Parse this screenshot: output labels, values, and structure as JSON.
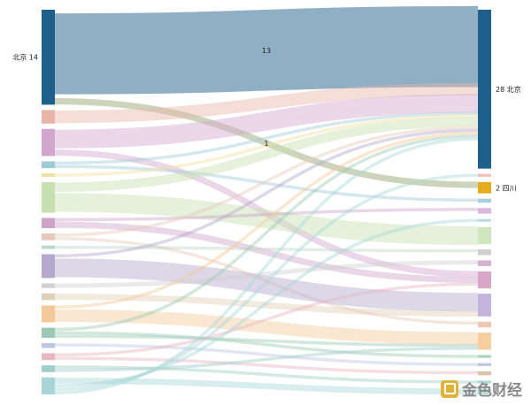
{
  "chart_data": {
    "type": "sankey",
    "left_nodes": [
      {
        "label": "北京 14",
        "value": 14,
        "color": "#1f5f8b"
      },
      {
        "label": "",
        "value": 2,
        "color": "#e8b4a8"
      },
      {
        "label": "",
        "value": 4,
        "color": "#d3a6cf"
      },
      {
        "label": "",
        "value": 1,
        "color": "#9fcbd6"
      },
      {
        "label": "",
        "value": 0.5,
        "color": "#f0e0a0"
      },
      {
        "label": "",
        "value": 4.5,
        "color": "#c8dfb0"
      },
      {
        "label": "",
        "value": 1.5,
        "color": "#cfa3c7"
      },
      {
        "label": "",
        "value": 1,
        "color": "#e6c9b8"
      },
      {
        "label": "",
        "value": 0.5,
        "color": "#bcd7c8"
      },
      {
        "label": "",
        "value": 3.5,
        "color": "#b4a8cc"
      },
      {
        "label": "",
        "value": 0.7,
        "color": "#d0d0d0"
      },
      {
        "label": "",
        "value": 1,
        "color": "#e2cfb8"
      },
      {
        "label": "",
        "value": 2.5,
        "color": "#f5c99a"
      },
      {
        "label": "",
        "value": 1.5,
        "color": "#9cc9b3"
      },
      {
        "label": "",
        "value": 0.7,
        "color": "#bcc7e3"
      },
      {
        "label": "",
        "value": 1,
        "color": "#e8b6c0"
      },
      {
        "label": "",
        "value": 1,
        "color": "#9fcfc8"
      },
      {
        "label": "",
        "value": 2.5,
        "color": "#a8d6d6"
      }
    ],
    "right_nodes": [
      {
        "label": "28 北京",
        "value": 28,
        "color": "#1f5f8b"
      },
      {
        "label": "",
        "value": 0.5,
        "color": "#f2c0b8"
      },
      {
        "label": "2 四川",
        "value": 2,
        "color": "#e6ac1e"
      },
      {
        "label": "",
        "value": 0.7,
        "color": "#a8d0e0"
      },
      {
        "label": "",
        "value": 1,
        "color": "#dcb8de"
      },
      {
        "label": "",
        "value": 0.5,
        "color": "#bfd9e6"
      },
      {
        "label": "",
        "value": 3,
        "color": "#cfe6bf"
      },
      {
        "label": "",
        "value": 1,
        "color": "#cfcfcf"
      },
      {
        "label": "",
        "value": 1,
        "color": "#d6b2d0"
      },
      {
        "label": "",
        "value": 3,
        "color": "#d9a6c8"
      },
      {
        "label": "",
        "value": 4,
        "color": "#c4b4dc"
      },
      {
        "label": "",
        "value": 1,
        "color": "#f0c6b4"
      },
      {
        "label": "",
        "value": 3,
        "color": "#f7cf9e"
      },
      {
        "label": "",
        "value": 0.5,
        "color": "#a8d2bc"
      },
      {
        "label": "",
        "value": 0.5,
        "color": "#bcc8e6"
      },
      {
        "label": "",
        "value": 0.7,
        "color": "#d8c4a8"
      },
      {
        "label": "",
        "value": 0.5,
        "color": "#b0d8d8"
      },
      {
        "label": "",
        "value": 1,
        "color": "#b7dcd9"
      }
    ],
    "flows": [
      {
        "source": 0,
        "target": 0,
        "value": 13,
        "label": "13"
      },
      {
        "source": 0,
        "target": 2,
        "value": 1,
        "label": "1"
      },
      {
        "source": 1,
        "target": 0,
        "value": 2,
        "label": ""
      },
      {
        "source": 2,
        "target": 0,
        "value": 3,
        "label": ""
      },
      {
        "source": 2,
        "target": 9,
        "value": 1,
        "label": ""
      },
      {
        "source": 3,
        "target": 0,
        "value": 0.5,
        "label": ""
      },
      {
        "source": 3,
        "target": 3,
        "value": 0.5,
        "label": ""
      },
      {
        "source": 4,
        "target": 0,
        "value": 0.5,
        "label": ""
      },
      {
        "source": 5,
        "target": 0,
        "value": 1.5,
        "label": ""
      },
      {
        "source": 5,
        "target": 6,
        "value": 3,
        "label": ""
      },
      {
        "source": 6,
        "target": 4,
        "value": 0.5,
        "label": ""
      },
      {
        "source": 6,
        "target": 9,
        "value": 1,
        "label": ""
      },
      {
        "source": 7,
        "target": 0,
        "value": 0.5,
        "label": ""
      },
      {
        "source": 7,
        "target": 11,
        "value": 0.5,
        "label": ""
      },
      {
        "source": 8,
        "target": 7,
        "value": 0.5,
        "label": ""
      },
      {
        "source": 9,
        "target": 0,
        "value": 0.5,
        "label": ""
      },
      {
        "source": 9,
        "target": 10,
        "value": 3,
        "label": ""
      },
      {
        "source": 10,
        "target": 8,
        "value": 0.7,
        "label": ""
      },
      {
        "source": 11,
        "target": 10,
        "value": 1,
        "label": ""
      },
      {
        "source": 12,
        "target": 0,
        "value": 0.5,
        "label": ""
      },
      {
        "source": 12,
        "target": 12,
        "value": 2,
        "label": ""
      },
      {
        "source": 13,
        "target": 0,
        "value": 0.5,
        "label": ""
      },
      {
        "source": 13,
        "target": 13,
        "value": 0.5,
        "label": ""
      },
      {
        "source": 13,
        "target": 12,
        "value": 0.5,
        "label": ""
      },
      {
        "source": 14,
        "target": 14,
        "value": 0.5,
        "label": ""
      },
      {
        "source": 15,
        "target": 9,
        "value": 0.5,
        "label": ""
      },
      {
        "source": 15,
        "target": 15,
        "value": 0.5,
        "label": ""
      },
      {
        "source": 16,
        "target": 16,
        "value": 0.5,
        "label": ""
      },
      {
        "source": 16,
        "target": 12,
        "value": 0.5,
        "label": ""
      },
      {
        "source": 17,
        "target": 17,
        "value": 1,
        "label": ""
      },
      {
        "source": 17,
        "target": 5,
        "value": 0.5,
        "label": ""
      },
      {
        "source": 17,
        "target": 1,
        "value": 0.5,
        "label": ""
      },
      {
        "source": 17,
        "target": 0,
        "value": 0.5,
        "label": ""
      }
    ]
  },
  "watermark": {
    "text": "金色财经"
  }
}
